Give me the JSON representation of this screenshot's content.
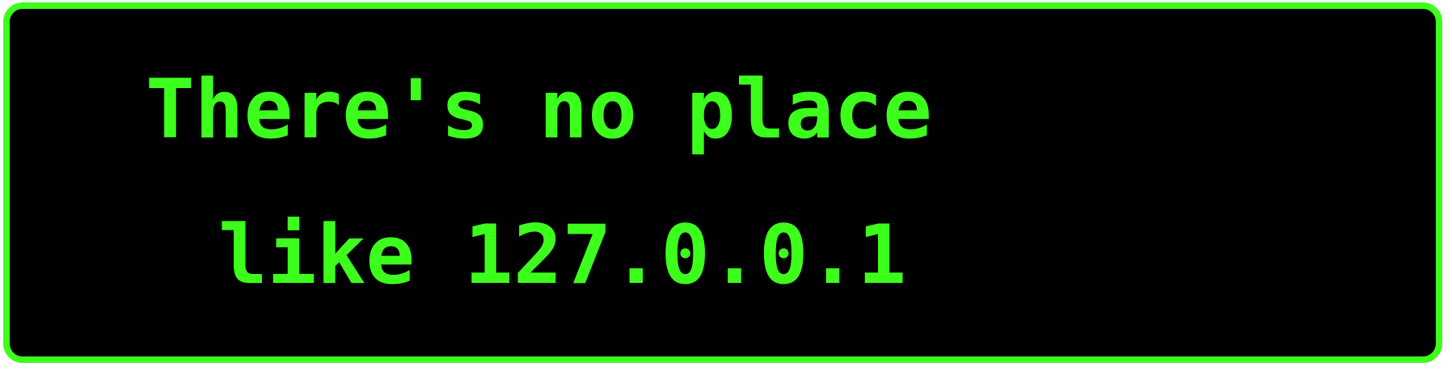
{
  "sign": {
    "line1": "There's no place",
    "line2": "like 127.0.0.1"
  },
  "colors": {
    "text": "#3cff1c",
    "border": "#3cff1c",
    "background": "#000000"
  }
}
